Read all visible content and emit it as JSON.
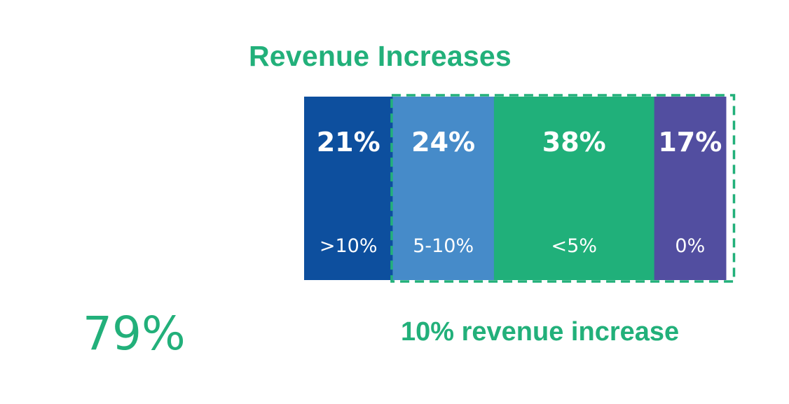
{
  "chart_data": {
    "type": "bar",
    "layout": "stacked-horizontal-100",
    "title": "Revenue Increases",
    "categories": [
      ">10%",
      "5-10%",
      "<5%",
      "0%"
    ],
    "values": [
      21,
      24,
      38,
      17
    ],
    "value_labels": [
      "21%",
      "24%",
      "38%",
      "17%"
    ],
    "colors": [
      "#0d4f9e",
      "#468bc9",
      "#20b07a",
      "#524ea0"
    ],
    "highlight": {
      "style": "dashed outline",
      "color": "#22b07a",
      "covers_categories": [
        "5-10%",
        "<5%",
        "0%"
      ],
      "label": "10% revenue increase"
    },
    "summary_value": "79%"
  }
}
